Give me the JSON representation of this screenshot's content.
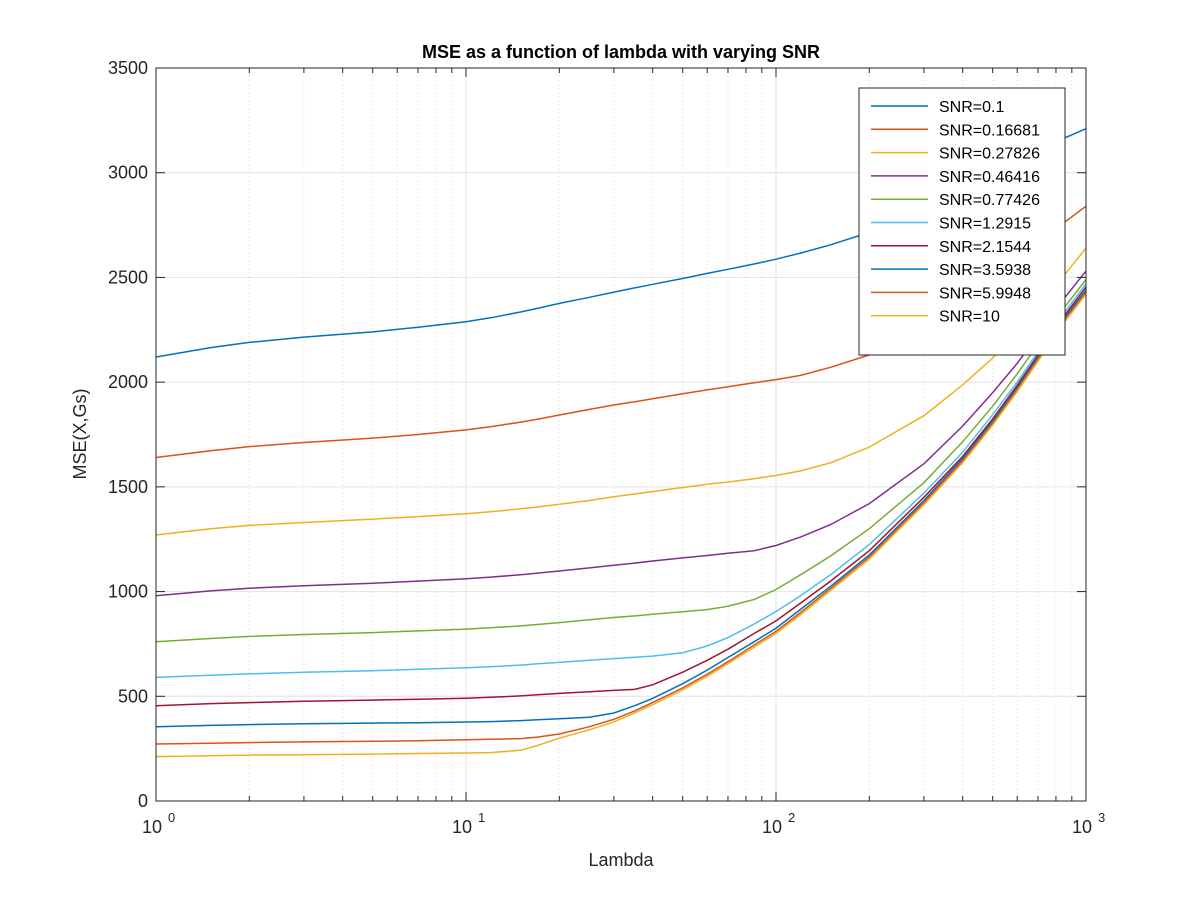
{
  "chart_data": {
    "type": "line",
    "title": "MSE as a function of lambda with varying SNR",
    "xlabel": "Lambda",
    "ylabel": "MSE(X,Gs)",
    "xscale": "log",
    "xlim": [
      1,
      1000
    ],
    "ylim": [
      0,
      3500
    ],
    "x_ticks": [
      {
        "base": "10",
        "exp": "0",
        "value": 1
      },
      {
        "base": "10",
        "exp": "1",
        "value": 10
      },
      {
        "base": "10",
        "exp": "2",
        "value": 100
      },
      {
        "base": "10",
        "exp": "3",
        "value": 1000
      }
    ],
    "y_ticks": [
      "0",
      "500",
      "1000",
      "1500",
      "2000",
      "2500",
      "3000",
      "3500"
    ],
    "grid": true,
    "legend_position": "top-right",
    "x": [
      1,
      1.5,
      2,
      3,
      5,
      7,
      10,
      12,
      15,
      17,
      20,
      25,
      30,
      35,
      40,
      50,
      60,
      70,
      85,
      100,
      120,
      150,
      200,
      300,
      400,
      500,
      600,
      700,
      850,
      1000
    ],
    "series": [
      {
        "name": "SNR=0.1",
        "color": "#0072BD",
        "values": [
          2120,
          2165,
          2190,
          2215,
          2240,
          2262,
          2288,
          2307,
          2335,
          2352,
          2376,
          2405,
          2430,
          2450,
          2467,
          2495,
          2519,
          2539,
          2564,
          2587,
          2616,
          2656,
          2715,
          2818,
          2903,
          2976,
          3041,
          3098,
          3165,
          3210
        ]
      },
      {
        "name": "SNR=0.16681",
        "color": "#D95319",
        "values": [
          1640,
          1672,
          1692,
          1712,
          1733,
          1750,
          1772,
          1787,
          1809,
          1823,
          1843,
          1870,
          1891,
          1906,
          1921,
          1945,
          1963,
          1978,
          1997,
          2012,
          2032,
          2071,
          2130,
          2258,
          2374,
          2480,
          2576,
          2665,
          2762,
          2840
        ]
      },
      {
        "name": "SNR=0.27826",
        "color": "#EDB120",
        "values": [
          1270,
          1300,
          1316,
          1330,
          1346,
          1358,
          1372,
          1381,
          1395,
          1404,
          1417,
          1435,
          1453,
          1466,
          1478,
          1497,
          1512,
          1523,
          1539,
          1554,
          1576,
          1615,
          1690,
          1840,
          1987,
          2115,
          2240,
          2355,
          2510,
          2640
        ]
      },
      {
        "name": "SNR=0.46416",
        "color": "#7E2F8E",
        "values": [
          980,
          1003,
          1016,
          1028,
          1040,
          1050,
          1061,
          1069,
          1080,
          1088,
          1098,
          1113,
          1126,
          1136,
          1146,
          1161,
          1172,
          1183,
          1195,
          1220,
          1260,
          1320,
          1420,
          1610,
          1790,
          1950,
          2090,
          2225,
          2400,
          2530
        ]
      },
      {
        "name": "SNR=0.77426",
        "color": "#77AC30",
        "values": [
          760,
          776,
          786,
          795,
          804,
          812,
          821,
          827,
          836,
          843,
          852,
          865,
          876,
          884,
          892,
          904,
          914,
          930,
          962,
          1010,
          1080,
          1170,
          1300,
          1520,
          1715,
          1885,
          2040,
          2180,
          2355,
          2490
        ]
      },
      {
        "name": "SNR=1.2915",
        "color": "#4DBEEE",
        "values": [
          590,
          600,
          607,
          615,
          622,
          629,
          636,
          641,
          649,
          655,
          662,
          672,
          680,
          686,
          692,
          708,
          740,
          780,
          845,
          905,
          980,
          1080,
          1225,
          1470,
          1665,
          1845,
          2000,
          2145,
          2330,
          2470
        ]
      },
      {
        "name": "SNR=2.1544",
        "color": "#A2142F",
        "values": [
          455,
          465,
          470,
          476,
          482,
          486,
          491,
          495,
          502,
          507,
          514,
          522,
          528,
          533,
          555,
          615,
          672,
          725,
          800,
          860,
          945,
          1050,
          1195,
          1450,
          1645,
          1825,
          1985,
          2130,
          2315,
          2455
        ]
      },
      {
        "name": "SNR=3.5938",
        "color": "#0072BD",
        "values": [
          355,
          361,
          365,
          369,
          372,
          374,
          377,
          379,
          384,
          388,
          393,
          400,
          420,
          455,
          490,
          560,
          625,
          685,
          760,
          825,
          915,
          1025,
          1175,
          1435,
          1635,
          1815,
          1975,
          2120,
          2305,
          2440
        ]
      },
      {
        "name": "SNR=5.9948",
        "color": "#D95319",
        "values": [
          272,
          276,
          279,
          282,
          285,
          288,
          292,
          295,
          298,
          305,
          320,
          355,
          390,
          430,
          470,
          540,
          605,
          665,
          745,
          810,
          900,
          1015,
          1165,
          1425,
          1625,
          1805,
          1965,
          2110,
          2295,
          2430
        ]
      },
      {
        "name": "SNR=10",
        "color": "#EDB120",
        "values": [
          212,
          216,
          219,
          221,
          224,
          227,
          229,
          231,
          242,
          265,
          300,
          340,
          378,
          420,
          460,
          530,
          595,
          655,
          735,
          800,
          890,
          1005,
          1155,
          1415,
          1615,
          1795,
          1955,
          2100,
          2285,
          2420
        ]
      }
    ]
  }
}
